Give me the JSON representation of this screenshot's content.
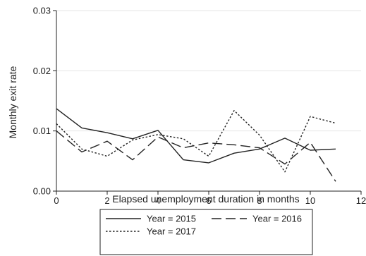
{
  "chart_data": {
    "type": "line",
    "title": "",
    "xlabel": "Elapsed unemployment duration in months",
    "ylabel": "Monthly exit rate",
    "xlim": [
      0,
      12
    ],
    "ylim": [
      0,
      0.03
    ],
    "xticks": [
      0,
      2,
      4,
      6,
      8,
      10,
      12
    ],
    "yticks": [
      0,
      0.01,
      0.02,
      0.03
    ],
    "xtick_labels": [
      "0",
      "2",
      "4",
      "6",
      "8",
      "10",
      "12"
    ],
    "ytick_labels": [
      "0.00",
      "0.01",
      "0.02",
      "0.03"
    ],
    "grid": "horizontal",
    "legend_position": "bottom",
    "x": [
      0,
      1,
      2,
      3,
      4,
      5,
      6,
      7,
      8,
      9,
      10,
      11
    ],
    "series": [
      {
        "name": "Year = 2015",
        "style": "solid",
        "color": "#222222",
        "values": [
          0.0137,
          0.0105,
          0.0097,
          0.0087,
          0.0101,
          0.0052,
          0.0047,
          0.0063,
          0.007,
          0.0088,
          0.0068,
          0.007
        ]
      },
      {
        "name": "Year = 2016",
        "style": "dashed",
        "color": "#222222",
        "values": [
          0.01,
          0.0065,
          0.0083,
          0.0052,
          0.009,
          0.0072,
          0.008,
          0.0077,
          0.0072,
          0.0045,
          0.0081,
          0.0016
        ]
      },
      {
        "name": "Year = 2017",
        "style": "dotted",
        "color": "#222222",
        "values": [
          0.0112,
          0.007,
          0.0058,
          0.0085,
          0.0094,
          0.0087,
          0.0058,
          0.0134,
          0.0093,
          0.0032,
          0.0124,
          0.0113
        ]
      }
    ]
  }
}
